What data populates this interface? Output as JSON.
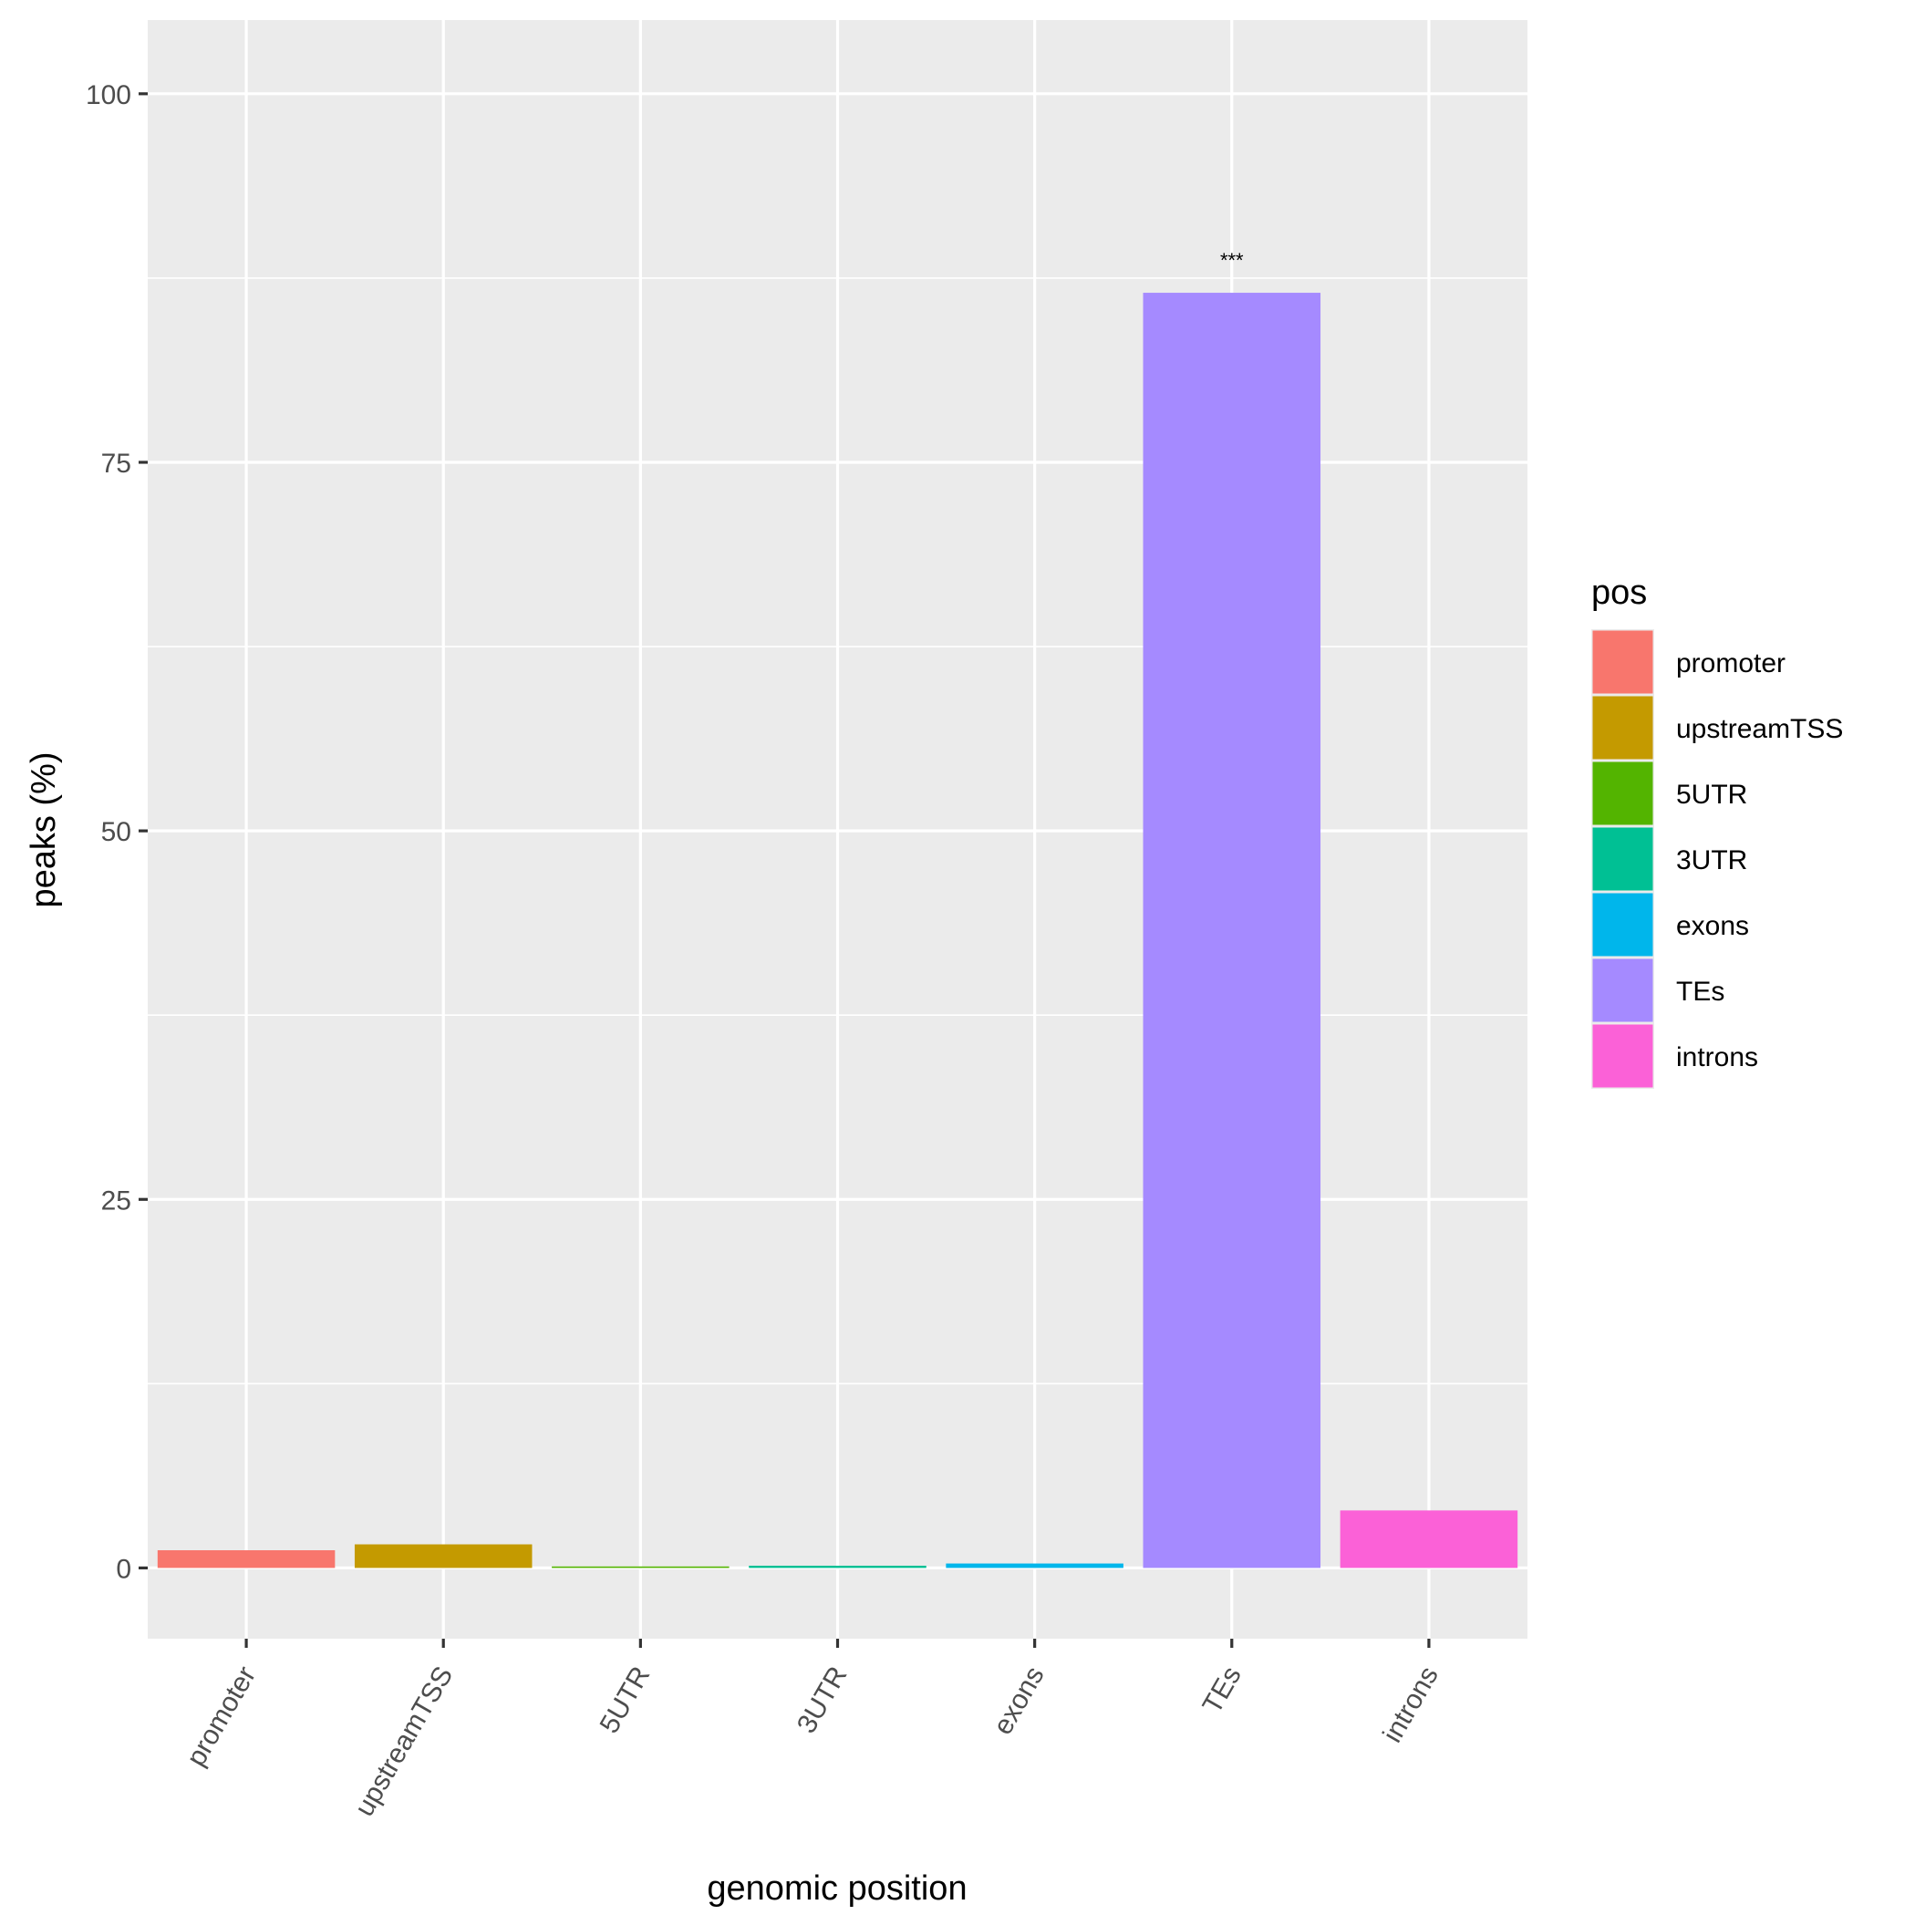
{
  "chart_data": {
    "type": "bar",
    "categories": [
      "promoter",
      "upstreamTSS",
      "5UTR",
      "3UTR",
      "exons",
      "TEs",
      "introns"
    ],
    "values": [
      1.2,
      1.6,
      0.1,
      0.15,
      0.3,
      86.5,
      3.9
    ],
    "colors": [
      "#F8766D",
      "#C49A00",
      "#53B400",
      "#00C094",
      "#00B6EB",
      "#A58AFF",
      "#FB61D7"
    ],
    "annotations": [
      {
        "category": "TEs",
        "text": "***"
      }
    ],
    "xlabel": "genomic position",
    "ylabel": "peaks (%)",
    "ylim": [
      -4.8,
      105
    ],
    "yticks": [
      0,
      25,
      50,
      75,
      100
    ],
    "ytick_labels": [
      "0",
      "25",
      "50",
      "75",
      "100"
    ],
    "grid": true,
    "panel_background": "#EBEBEB",
    "legend": {
      "title": "pos",
      "placement": "right",
      "entries": [
        "promoter",
        "upstreamTSS",
        "5UTR",
        "3UTR",
        "exons",
        "TEs",
        "introns"
      ]
    }
  }
}
